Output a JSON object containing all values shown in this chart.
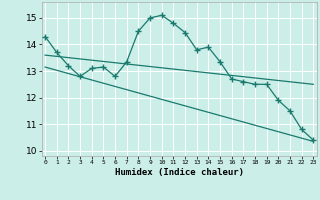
{
  "xlabel": "Humidex (Indice chaleur)",
  "background_color": "#cceee8",
  "grid_color": "#ffffff",
  "line_color": "#1a7a6e",
  "x_ticks": [
    0,
    1,
    2,
    3,
    4,
    5,
    6,
    7,
    8,
    9,
    10,
    11,
    12,
    13,
    14,
    15,
    16,
    17,
    18,
    19,
    20,
    21,
    22,
    23
  ],
  "y_ticks": [
    10,
    11,
    12,
    13,
    14,
    15
  ],
  "ylim": [
    9.8,
    15.6
  ],
  "xlim": [
    -0.3,
    23.3
  ],
  "line1_x": [
    0,
    1,
    2,
    3,
    4,
    5,
    6,
    7,
    8,
    9,
    10,
    11,
    12,
    13,
    14,
    15,
    16,
    17,
    18,
    19,
    20,
    21,
    22,
    23
  ],
  "line1_y": [
    14.3,
    13.7,
    13.2,
    12.8,
    13.1,
    13.15,
    12.8,
    13.35,
    14.5,
    15.0,
    15.1,
    14.8,
    14.45,
    13.8,
    13.9,
    13.35,
    12.7,
    12.6,
    12.5,
    12.5,
    11.9,
    11.5,
    10.8,
    10.4
  ],
  "line2_x": [
    0,
    23
  ],
  "line2_y": [
    13.6,
    12.5
  ],
  "line3_x": [
    0,
    23
  ],
  "line3_y": [
    13.15,
    10.35
  ]
}
